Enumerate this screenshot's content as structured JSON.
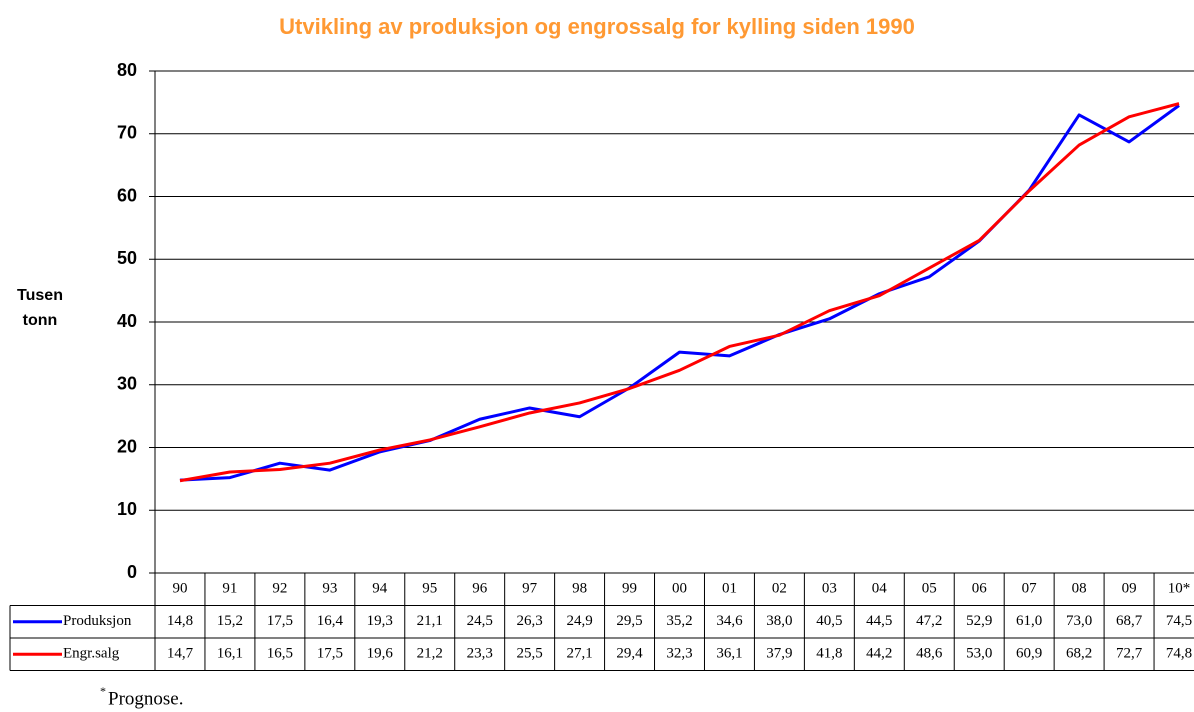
{
  "chart_data": {
    "type": "line",
    "title": "Utvikling av produksjon og engrossalg for kylling siden 1990",
    "y_label": "Tusen tonn",
    "categories": [
      "90",
      "91",
      "92",
      "93",
      "94",
      "95",
      "96",
      "97",
      "98",
      "99",
      "00",
      "01",
      "02",
      "03",
      "04",
      "05",
      "06",
      "07",
      "08",
      "09",
      "10*"
    ],
    "series": [
      {
        "name": "Produksjon",
        "color": "#0000ff",
        "values": [
          14.8,
          15.2,
          17.5,
          16.4,
          19.3,
          21.1,
          24.5,
          26.3,
          24.9,
          29.5,
          35.2,
          34.6,
          38.0,
          40.5,
          44.5,
          47.2,
          52.9,
          61.0,
          73.0,
          68.7,
          74.5
        ],
        "value_labels": [
          "14,8",
          "15,2",
          "17,5",
          "16,4",
          "19,3",
          "21,1",
          "24,5",
          "26,3",
          "24,9",
          "29,5",
          "35,2",
          "34,6",
          "38,0",
          "40,5",
          "44,5",
          "47,2",
          "52,9",
          "61,0",
          "73,0",
          "68,7",
          "74,5"
        ]
      },
      {
        "name": "Engr.salg",
        "color": "#ff0000",
        "values": [
          14.7,
          16.1,
          16.5,
          17.5,
          19.6,
          21.2,
          23.3,
          25.5,
          27.1,
          29.4,
          32.3,
          36.1,
          37.9,
          41.8,
          44.2,
          48.6,
          53.0,
          60.9,
          68.2,
          72.7,
          74.8
        ],
        "value_labels": [
          "14,7",
          "16,1",
          "16,5",
          "17,5",
          "19,6",
          "21,2",
          "23,3",
          "25,5",
          "27,1",
          "29,4",
          "32,3",
          "36,1",
          "37,9",
          "41,8",
          "44,2",
          "48,6",
          "53,0",
          "60,9",
          "68,2",
          "72,7",
          "74,8"
        ]
      }
    ],
    "ylim": [
      0,
      80
    ],
    "yticks": [
      0,
      10,
      20,
      30,
      40,
      50,
      60,
      70,
      80
    ],
    "grid": true,
    "footnote_marker": "*",
    "footnote": "Prognose."
  }
}
